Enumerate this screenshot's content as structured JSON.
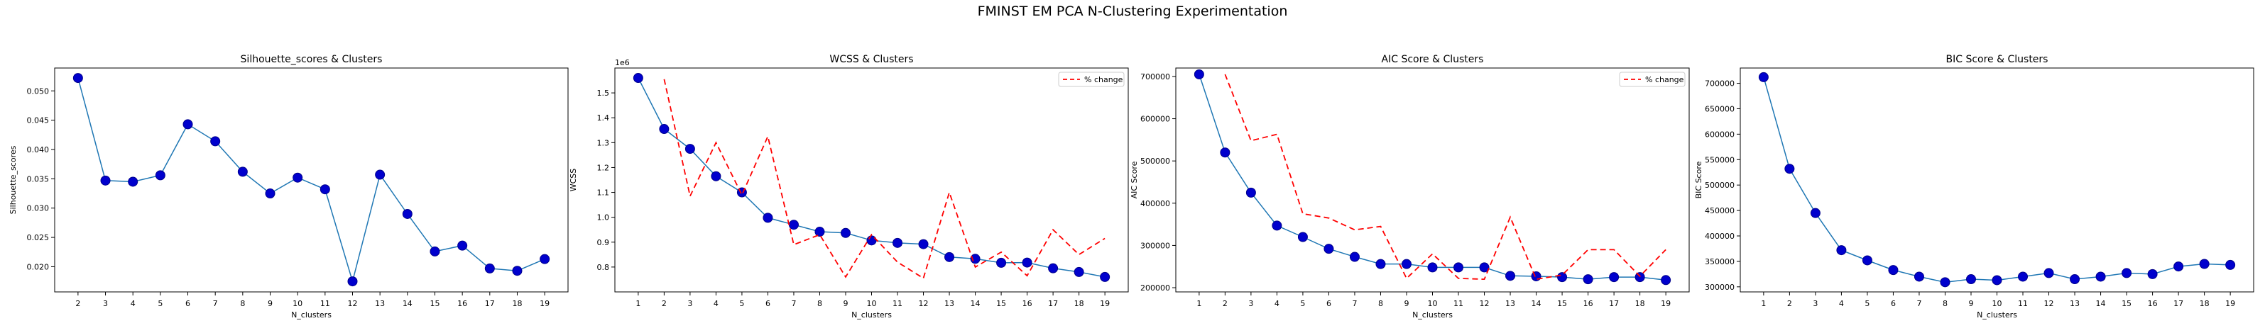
{
  "suptitle": "FMINST EM PCA N-Clustering Experimentation",
  "colors": {
    "line": "#1f77b4",
    "marker": "#0000cd",
    "marker_edge": "#00008b",
    "pct": "#ff0000"
  },
  "chart_data": [
    {
      "type": "line",
      "title": "Silhouette_scores & Clusters",
      "xlabel": "N_clusters",
      "ylabel": "Silhouette_scores",
      "offset_label": "",
      "x": [
        2,
        3,
        4,
        5,
        6,
        7,
        8,
        9,
        10,
        11,
        12,
        13,
        14,
        15,
        16,
        17,
        18,
        19
      ],
      "xticks": [
        2,
        3,
        4,
        5,
        6,
        7,
        8,
        9,
        10,
        11,
        12,
        13,
        14,
        15,
        16,
        17,
        18,
        19
      ],
      "xlim": [
        1.15,
        19.85
      ],
      "ylim": [
        0.0157,
        0.0539
      ],
      "yticks": [
        0.02,
        0.025,
        0.03,
        0.035,
        0.04,
        0.045,
        0.05
      ],
      "ytick_labels": [
        "0.020",
        "0.025",
        "0.030",
        "0.035",
        "0.040",
        "0.045",
        "0.050"
      ],
      "series": [
        {
          "values": [
            0.0522,
            0.0347,
            0.0345,
            0.0356,
            0.0443,
            0.0414,
            0.0362,
            0.0325,
            0.0352,
            0.0332,
            0.0175,
            0.0357,
            0.029,
            0.0226,
            0.0236,
            0.0197,
            0.0193,
            0.0213
          ]
        }
      ],
      "legend": null
    },
    {
      "type": "line",
      "title": "WCSS & Clusters",
      "xlabel": "N_clusters",
      "ylabel": "WCSS",
      "offset_label": "1e6",
      "x": [
        1,
        2,
        3,
        4,
        5,
        6,
        7,
        8,
        9,
        10,
        11,
        12,
        13,
        14,
        15,
        16,
        17,
        18,
        19
      ],
      "xticks": [
        1,
        2,
        3,
        4,
        5,
        6,
        7,
        8,
        9,
        10,
        11,
        12,
        13,
        14,
        15,
        16,
        17,
        18,
        19
      ],
      "xlim": [
        0.1,
        19.9
      ],
      "ylim": [
        0.7,
        1.6
      ],
      "yticks": [
        0.8,
        0.9,
        1.0,
        1.1,
        1.2,
        1.3,
        1.4,
        1.5
      ],
      "ytick_labels": [
        "0.8",
        "0.9",
        "1.0",
        "1.1",
        "1.2",
        "1.3",
        "1.4",
        "1.5"
      ],
      "series": [
        {
          "values": [
            1.56,
            1.355,
            1.275,
            1.165,
            1.1,
            0.998,
            0.97,
            0.942,
            0.937,
            0.907,
            0.897,
            0.892,
            0.84,
            0.833,
            0.817,
            0.818,
            0.795,
            0.78,
            0.76
          ]
        },
        {
          "name": "% change",
          "x": [
            2,
            3,
            4,
            5,
            6,
            7,
            8,
            9,
            10,
            11,
            12,
            13,
            14,
            15,
            16,
            17,
            18,
            19
          ],
          "values": [
            1.555,
            1.085,
            1.3,
            1.09,
            1.325,
            0.89,
            0.93,
            0.76,
            0.93,
            0.82,
            0.755,
            1.1,
            0.8,
            0.86,
            0.765,
            0.95,
            0.85,
            0.915
          ]
        }
      ],
      "legend": "top-right"
    },
    {
      "type": "line",
      "title": "AIC Score & Clusters",
      "xlabel": "N_clusters",
      "ylabel": "AIC Score",
      "offset_label": "",
      "x": [
        1,
        2,
        3,
        4,
        5,
        6,
        7,
        8,
        9,
        10,
        11,
        12,
        13,
        14,
        15,
        16,
        17,
        18,
        19
      ],
      "xticks": [
        1,
        2,
        3,
        4,
        5,
        6,
        7,
        8,
        9,
        10,
        11,
        12,
        13,
        14,
        15,
        16,
        17,
        18,
        19
      ],
      "xlim": [
        0.1,
        19.9
      ],
      "ylim": [
        190000,
        720000
      ],
      "yticks": [
        200000,
        300000,
        400000,
        500000,
        600000,
        700000
      ],
      "ytick_labels": [
        "200000",
        "300000",
        "400000",
        "500000",
        "600000",
        "700000"
      ],
      "series": [
        {
          "values": [
            705000,
            520000,
            425000,
            347000,
            320000,
            292000,
            273000,
            256000,
            256000,
            248000,
            248000,
            248000,
            228000,
            227000,
            225000,
            220000,
            225000,
            225000,
            218000
          ]
        },
        {
          "name": "% change",
          "x": [
            2,
            3,
            4,
            5,
            6,
            7,
            8,
            9,
            10,
            11,
            12,
            13,
            14,
            15,
            16,
            17,
            18,
            19
          ],
          "values": [
            705000,
            548000,
            563000,
            375000,
            365000,
            337000,
            345000,
            222000,
            280000,
            222000,
            220000,
            367000,
            220000,
            230000,
            290000,
            290000,
            227000,
            290000
          ]
        }
      ],
      "legend": "top-right"
    },
    {
      "type": "line",
      "title": "BIC Score & Clusters",
      "xlabel": "N_clusters",
      "ylabel": "BIC Score",
      "offset_label": "",
      "x": [
        1,
        2,
        3,
        4,
        5,
        6,
        7,
        8,
        9,
        10,
        11,
        12,
        13,
        14,
        15,
        16,
        17,
        18,
        19
      ],
      "xticks": [
        1,
        2,
        3,
        4,
        5,
        6,
        7,
        8,
        9,
        10,
        11,
        12,
        13,
        14,
        15,
        16,
        17,
        18,
        19
      ],
      "xlim": [
        0.1,
        19.9
      ],
      "ylim": [
        290000,
        730000
      ],
      "yticks": [
        300000,
        350000,
        400000,
        450000,
        500000,
        550000,
        600000,
        650000,
        700000
      ],
      "ytick_labels": [
        "300000",
        "350000",
        "400000",
        "450000",
        "500000",
        "550000",
        "600000",
        "650000",
        "700000"
      ],
      "series": [
        {
          "values": [
            712000,
            532000,
            445000,
            372000,
            352000,
            333000,
            320000,
            309000,
            315000,
            313000,
            320000,
            327000,
            315000,
            320000,
            327000,
            325000,
            340000,
            345000,
            343000
          ]
        }
      ],
      "legend": null
    }
  ]
}
